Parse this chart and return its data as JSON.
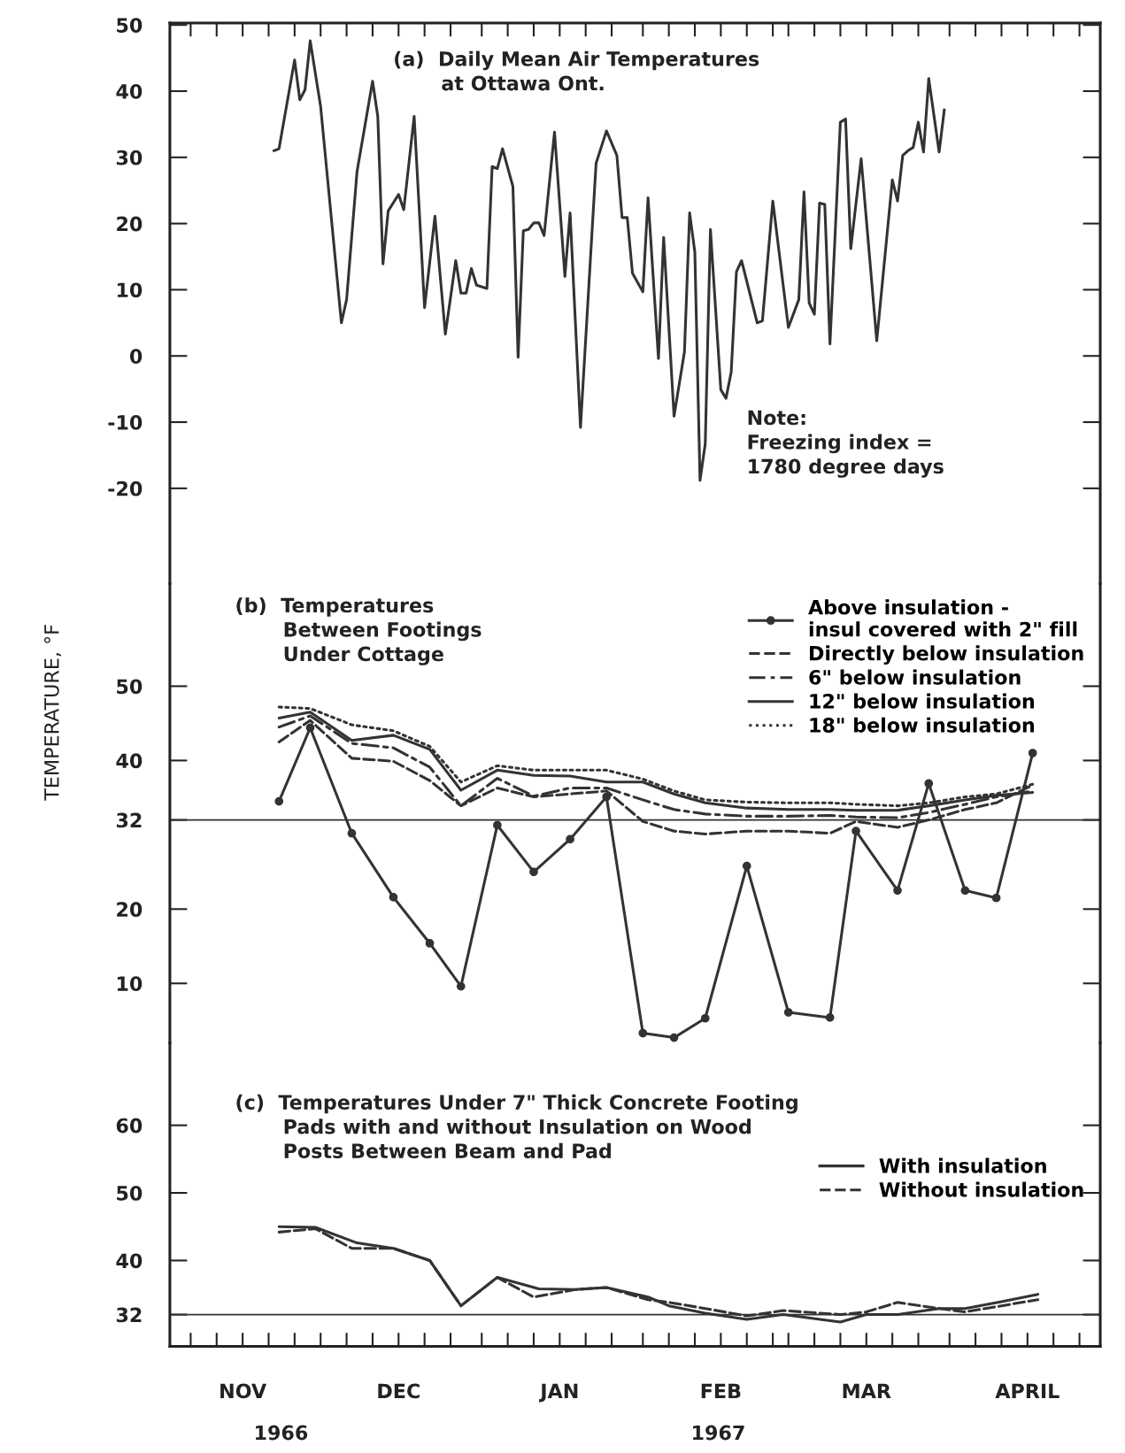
{
  "chart_data": [
    {
      "type": "line",
      "title": "(a)  Daily Mean Air Temperatures\n       at Ottawa Ont.",
      "xlim": [
        "1966-11-02",
        "1967-04-30"
      ],
      "ylim": [
        -34.4,
        50.3
      ],
      "yticks": [
        -20,
        -10,
        0,
        10,
        20,
        30,
        40,
        50
      ],
      "xticks": [
        {
          "value": "1966-11-06",
          "label": null
        },
        {
          "value": "1966-11-11",
          "label": null
        },
        {
          "value": "1966-11-16",
          "label": null
        },
        {
          "value": "1966-11-21",
          "label": null
        },
        {
          "value": "1966-11-26",
          "label": null
        },
        {
          "value": "1966-12-01",
          "label": null
        },
        {
          "value": "1966-12-06",
          "label": null
        },
        {
          "value": "1966-12-11",
          "label": null
        },
        {
          "value": "1966-12-16",
          "label": null
        },
        {
          "value": "1966-12-21",
          "label": null
        },
        {
          "value": "1966-12-26",
          "label": null
        },
        {
          "value": "1967-01-01",
          "label": null
        },
        {
          "value": "1967-01-06",
          "label": null
        },
        {
          "value": "1967-01-11",
          "label": null
        },
        {
          "value": "1967-01-16",
          "label": null
        },
        {
          "value": "1967-01-21",
          "label": null
        },
        {
          "value": "1967-01-26",
          "label": null
        },
        {
          "value": "1967-02-01",
          "label": null
        },
        {
          "value": "1967-02-06",
          "label": null
        },
        {
          "value": "1967-02-11",
          "label": null
        },
        {
          "value": "1967-02-16",
          "label": null
        },
        {
          "value": "1967-02-21",
          "label": null
        },
        {
          "value": "1967-02-26",
          "label": null
        },
        {
          "value": "1967-03-01",
          "label": null
        },
        {
          "value": "1967-03-06",
          "label": null
        },
        {
          "value": "1967-03-11",
          "label": null
        },
        {
          "value": "1967-03-16",
          "label": null
        },
        {
          "value": "1967-03-21",
          "label": null
        },
        {
          "value": "1967-03-26",
          "label": null
        },
        {
          "value": "1967-04-01",
          "label": null
        },
        {
          "value": "1967-04-06",
          "label": null
        },
        {
          "value": "1967-04-11",
          "label": null
        },
        {
          "value": "1967-04-16",
          "label": null
        },
        {
          "value": "1967-04-21",
          "label": null
        },
        {
          "value": "1967-04-26",
          "label": null
        }
      ],
      "tick_labels": "y",
      "grid": false,
      "legend": false,
      "annotations": [
        "Note:\nFreezing index =\n1780 degree days"
      ],
      "series": [
        {
          "color": "#333333",
          "line_style": "solid",
          "x": [
            "1966-11-22",
            "1966-11-23",
            "1966-11-26",
            "1966-11-27",
            "1966-11-28",
            "1966-11-29",
            "1966-12-01",
            "1966-12-05",
            "1966-12-06",
            "1966-12-08",
            "1966-12-11",
            "1966-12-12",
            "1966-12-13",
            "1966-12-14",
            "1966-12-16",
            "1966-12-17",
            "1966-12-19",
            "1966-12-21",
            "1966-12-23",
            "1966-12-25",
            "1966-12-27",
            "1966-12-28",
            "1966-12-29",
            "1966-12-30",
            "1966-12-31",
            "1967-01-02",
            "1967-01-03",
            "1967-01-04",
            "1967-01-05",
            "1967-01-07",
            "1967-01-08",
            "1967-01-09",
            "1967-01-10",
            "1967-01-11",
            "1967-01-12",
            "1967-01-13",
            "1967-01-15",
            "1967-01-17",
            "1967-01-18",
            "1967-01-20",
            "1967-01-23",
            "1967-01-25",
            "1967-01-27",
            "1967-01-28",
            "1967-01-29",
            "1967-01-30",
            "1967-02-01",
            "1967-02-02",
            "1967-02-04",
            "1967-02-05",
            "1967-02-07",
            "1967-02-09",
            "1967-02-10",
            "1967-02-11",
            "1967-02-12",
            "1967-02-13",
            "1967-02-14",
            "1967-02-16",
            "1967-02-17",
            "1967-02-18",
            "1967-02-19",
            "1967-02-20",
            "1967-02-23",
            "1967-02-24",
            "1967-02-26",
            "1967-03-01",
            "1967-03-03",
            "1967-03-04",
            "1967-03-05",
            "1967-03-06",
            "1967-03-07",
            "1967-03-08",
            "1967-03-09",
            "1967-03-11",
            "1967-03-12",
            "1967-03-13",
            "1967-03-15",
            "1967-03-18",
            "1967-03-21",
            "1967-03-22",
            "1967-03-23",
            "1967-03-24",
            "1967-03-25",
            "1967-03-26",
            "1967-03-27",
            "1967-03-28",
            "1967-03-30",
            "1967-03-31"
          ],
          "values": [
            31.0,
            31.3,
            44.7,
            38.7,
            40.2,
            47.6,
            37.7,
            5.0,
            8.5,
            27.8,
            41.5,
            36.2,
            13.9,
            21.9,
            24.4,
            22.1,
            36.2,
            7.3,
            21.1,
            3.3,
            14.4,
            9.5,
            9.5,
            13.2,
            10.7,
            10.2,
            28.6,
            28.3,
            31.3,
            25.6,
            -0.2,
            18.9,
            19.1,
            20.1,
            20.1,
            18.2,
            33.8,
            12.0,
            21.6,
            -10.8,
            29.1,
            34.0,
            30.3,
            20.9,
            20.9,
            12.5,
            9.7,
            23.9,
            -0.4,
            17.9,
            -9.1,
            0.6,
            21.6,
            15.7,
            -18.8,
            -13.3,
            19.1,
            -5.1,
            -6.4,
            -2.4,
            12.7,
            14.4,
            5.0,
            5.3,
            23.4,
            4.3,
            8.5,
            24.8,
            8.0,
            6.3,
            23.1,
            22.9,
            1.8,
            35.3,
            35.8,
            16.2,
            29.8,
            2.3,
            26.6,
            23.4,
            30.3,
            31.0,
            31.5,
            35.3,
            30.8,
            41.9,
            30.8,
            37.2
          ]
        }
      ]
    },
    {
      "type": "line",
      "title": "(b)  Temperatures\n       Between Footings\n       Under Cottage",
      "ylabel": "TEMPERATURE, °F",
      "xlim": [
        "1966-11-02",
        "1967-04-30"
      ],
      "ylim": [
        2.0,
        63.8
      ],
      "yticks": [
        10,
        20,
        32,
        40,
        50
      ],
      "tick_labels": "y",
      "grid": false,
      "legend": "top right",
      "ref_lines": [
        {
          "axis": "y",
          "value": 32,
          "color": "#333333"
        }
      ],
      "series": [
        {
          "name": "Above insulation -\ninsul covered with 2\" fill",
          "color": "#333333",
          "line_style": "solid",
          "marker": "circle",
          "x": [
            "1966-11-23",
            "1966-11-29",
            "1966-12-07",
            "1966-12-15",
            "1966-12-22",
            "1966-12-28",
            "1967-01-04",
            "1967-01-11",
            "1967-01-18",
            "1967-01-25",
            "1967-02-01",
            "1967-02-07",
            "1967-02-13",
            "1967-02-21",
            "1967-03-01",
            "1967-03-09",
            "1967-03-14",
            "1967-03-22",
            "1967-03-28",
            "1967-04-04",
            "1967-04-10",
            "1967-04-17"
          ],
          "values": [
            34.5,
            44.4,
            30.2,
            21.6,
            15.4,
            9.6,
            31.3,
            25.0,
            29.4,
            35.1,
            3.3,
            2.7,
            5.3,
            25.8,
            6.1,
            5.4,
            30.5,
            22.5,
            36.9,
            22.5,
            21.5,
            41.0
          ]
        },
        {
          "name": "Directly below insulation",
          "color": "#333333",
          "line_style": "dashed",
          "x": [
            "1966-11-23",
            "1966-11-29",
            "1966-12-07",
            "1966-12-15",
            "1966-12-22",
            "1966-12-28",
            "1967-01-04",
            "1967-01-11",
            "1967-01-18",
            "1967-01-25",
            "1967-02-01",
            "1967-02-07",
            "1967-02-13",
            "1967-02-21",
            "1967-03-01",
            "1967-03-09",
            "1967-03-14",
            "1967-03-22",
            "1967-03-28",
            "1967-04-04",
            "1967-04-10",
            "1967-04-17"
          ],
          "values": [
            42.5,
            45.4,
            40.3,
            39.9,
            37.3,
            33.9,
            36.3,
            35.1,
            35.5,
            35.9,
            31.8,
            30.5,
            30.1,
            30.5,
            30.5,
            30.2,
            31.8,
            31.0,
            32.0,
            33.4,
            34.3,
            36.7
          ]
        },
        {
          "name": "6\" below insulation",
          "color": "#333333",
          "line_style": "dashdot",
          "x": [
            "1966-11-23",
            "1966-11-29",
            "1966-12-07",
            "1966-12-15",
            "1966-12-22",
            "1966-12-28",
            "1967-01-04",
            "1967-01-11",
            "1967-01-18",
            "1967-01-25",
            "1967-02-01",
            "1967-02-07",
            "1967-02-13",
            "1967-02-21",
            "1967-03-01",
            "1967-03-09",
            "1967-03-14",
            "1967-03-22",
            "1967-03-28",
            "1967-04-04",
            "1967-04-10",
            "1967-04-17"
          ],
          "values": [
            44.5,
            46.0,
            42.3,
            41.7,
            39.1,
            33.9,
            37.6,
            35.2,
            36.3,
            36.3,
            34.7,
            33.4,
            32.8,
            32.5,
            32.5,
            32.6,
            32.4,
            32.3,
            33.0,
            34.1,
            35.1,
            35.9
          ]
        },
        {
          "name": "12\" below insulation",
          "color": "#333333",
          "line_style": "solid",
          "x": [
            "1966-11-23",
            "1966-11-29",
            "1966-12-07",
            "1966-12-15",
            "1966-12-22",
            "1966-12-28",
            "1967-01-04",
            "1967-01-11",
            "1967-01-18",
            "1967-01-25",
            "1967-02-01",
            "1967-02-07",
            "1967-02-13",
            "1967-02-21",
            "1967-03-01",
            "1967-03-09",
            "1967-03-14",
            "1967-03-22",
            "1967-03-28",
            "1967-04-04",
            "1967-04-10",
            "1967-04-17"
          ],
          "values": [
            45.7,
            46.5,
            42.7,
            43.4,
            41.5,
            36.0,
            38.7,
            38.0,
            37.9,
            37.1,
            37.1,
            35.5,
            34.3,
            33.6,
            33.4,
            33.4,
            33.3,
            33.3,
            33.9,
            34.7,
            35.3,
            35.7
          ]
        },
        {
          "name": "18\" below insulation",
          "color": "#333333",
          "line_style": "dotted",
          "x": [
            "1966-11-23",
            "1966-11-29",
            "1966-12-07",
            "1966-12-15",
            "1966-12-22",
            "1966-12-28",
            "1967-01-04",
            "1967-01-11",
            "1967-01-18",
            "1967-01-25",
            "1967-02-01",
            "1967-02-07",
            "1967-02-13",
            "1967-02-21",
            "1967-03-01",
            "1967-03-09",
            "1967-03-14",
            "1967-03-22",
            "1967-03-28",
            "1967-04-04",
            "1967-04-10",
            "1967-04-17"
          ],
          "values": [
            47.2,
            47.0,
            44.8,
            44.0,
            41.9,
            37.1,
            39.3,
            38.7,
            38.7,
            38.7,
            37.5,
            35.9,
            34.7,
            34.4,
            34.3,
            34.3,
            34.1,
            33.9,
            34.3,
            35.1,
            35.5,
            36.8
          ]
        }
      ]
    },
    {
      "type": "line",
      "title": "(c)  Temperatures Under 7\" Thick Concrete Footing\n       Pads with and without Insulation on Wood\n       Posts Between Beam and Pad",
      "xlim": [
        "1966-11-02",
        "1967-04-30"
      ],
      "ylim": [
        27.3,
        72.2
      ],
      "yticks": [
        32,
        40,
        50,
        60
      ],
      "xticks": [
        {
          "value": "1966-11-06",
          "label": null
        },
        {
          "value": "1966-11-11",
          "label": null
        },
        {
          "value": "1966-11-16",
          "label": "NOV"
        },
        {
          "value": "1966-11-21",
          "label": null
        },
        {
          "value": "1966-11-26",
          "label": null
        },
        {
          "value": "1966-12-01",
          "label": null
        },
        {
          "value": "1966-12-06",
          "label": null
        },
        {
          "value": "1966-12-11",
          "label": null
        },
        {
          "value": "1966-12-16",
          "label": "DEC"
        },
        {
          "value": "1966-12-21",
          "label": null
        },
        {
          "value": "1966-12-26",
          "label": null
        },
        {
          "value": "1967-01-01",
          "label": null
        },
        {
          "value": "1967-01-06",
          "label": null
        },
        {
          "value": "1967-01-11",
          "label": null
        },
        {
          "value": "1967-01-16",
          "label": "JAN"
        },
        {
          "value": "1967-01-21",
          "label": null
        },
        {
          "value": "1967-01-26",
          "label": null
        },
        {
          "value": "1967-02-01",
          "label": null
        },
        {
          "value": "1967-02-06",
          "label": null
        },
        {
          "value": "1967-02-11",
          "label": null
        },
        {
          "value": "1967-02-16",
          "label": "FEB"
        },
        {
          "value": "1967-02-21",
          "label": null
        },
        {
          "value": "1967-02-26",
          "label": null
        },
        {
          "value": "1967-03-01",
          "label": null
        },
        {
          "value": "1967-03-06",
          "label": null
        },
        {
          "value": "1967-03-11",
          "label": null
        },
        {
          "value": "1967-03-16",
          "label": "MAR"
        },
        {
          "value": "1967-03-21",
          "label": null
        },
        {
          "value": "1967-03-26",
          "label": null
        },
        {
          "value": "1967-04-01",
          "label": null
        },
        {
          "value": "1967-04-06",
          "label": null
        },
        {
          "value": "1967-04-11",
          "label": null
        },
        {
          "value": "1967-04-16",
          "label": "APRIL"
        },
        {
          "value": "1967-04-21",
          "label": null
        },
        {
          "value": "1967-04-26",
          "label": null
        }
      ],
      "grid": false,
      "legend": "right",
      "annotations": [
        "1966",
        "1967"
      ],
      "ref_lines": [
        {
          "axis": "y",
          "value": 32,
          "color": "#333333"
        }
      ],
      "series": [
        {
          "name": "With insulation",
          "color": "#333333",
          "line_style": "solid",
          "x": [
            "1966-11-23",
            "1966-11-30",
            "1966-12-08",
            "1966-12-15",
            "1966-12-22",
            "1966-12-28",
            "1967-01-04",
            "1967-01-12",
            "1967-01-19",
            "1967-01-25",
            "1967-02-02",
            "1967-02-06",
            "1967-02-13",
            "1967-02-21",
            "1967-02-28",
            "1967-03-11",
            "1967-03-16",
            "1967-03-22",
            "1967-03-30",
            "1967-04-04",
            "1967-04-11",
            "1967-04-18"
          ],
          "values": [
            45.0,
            44.9,
            42.6,
            41.8,
            40.0,
            33.3,
            37.5,
            35.8,
            35.7,
            36.0,
            34.6,
            33.3,
            32.2,
            31.3,
            32.0,
            30.9,
            32.0,
            32.0,
            32.9,
            32.9,
            33.9,
            35.0
          ]
        },
        {
          "name": "Without insulation",
          "color": "#333333",
          "line_style": "dashed",
          "x": [
            "1966-11-23",
            "1966-11-30",
            "1966-12-07",
            "1966-12-15",
            "1966-12-22",
            "1966-12-28",
            "1967-01-04",
            "1967-01-11",
            "1967-01-19",
            "1967-01-25",
            "1967-02-02",
            "1967-02-06",
            "1967-02-13",
            "1967-02-21",
            "1967-02-28",
            "1967-03-11",
            "1967-03-16",
            "1967-03-22",
            "1967-03-30",
            "1967-04-04",
            "1967-04-11",
            "1967-04-18"
          ],
          "values": [
            44.2,
            44.7,
            41.8,
            41.8,
            40.0,
            33.3,
            37.5,
            34.6,
            35.7,
            36.0,
            34.2,
            33.8,
            32.9,
            31.8,
            32.6,
            32.0,
            32.4,
            33.8,
            32.9,
            32.4,
            33.3,
            34.2
          ]
        }
      ]
    }
  ]
}
